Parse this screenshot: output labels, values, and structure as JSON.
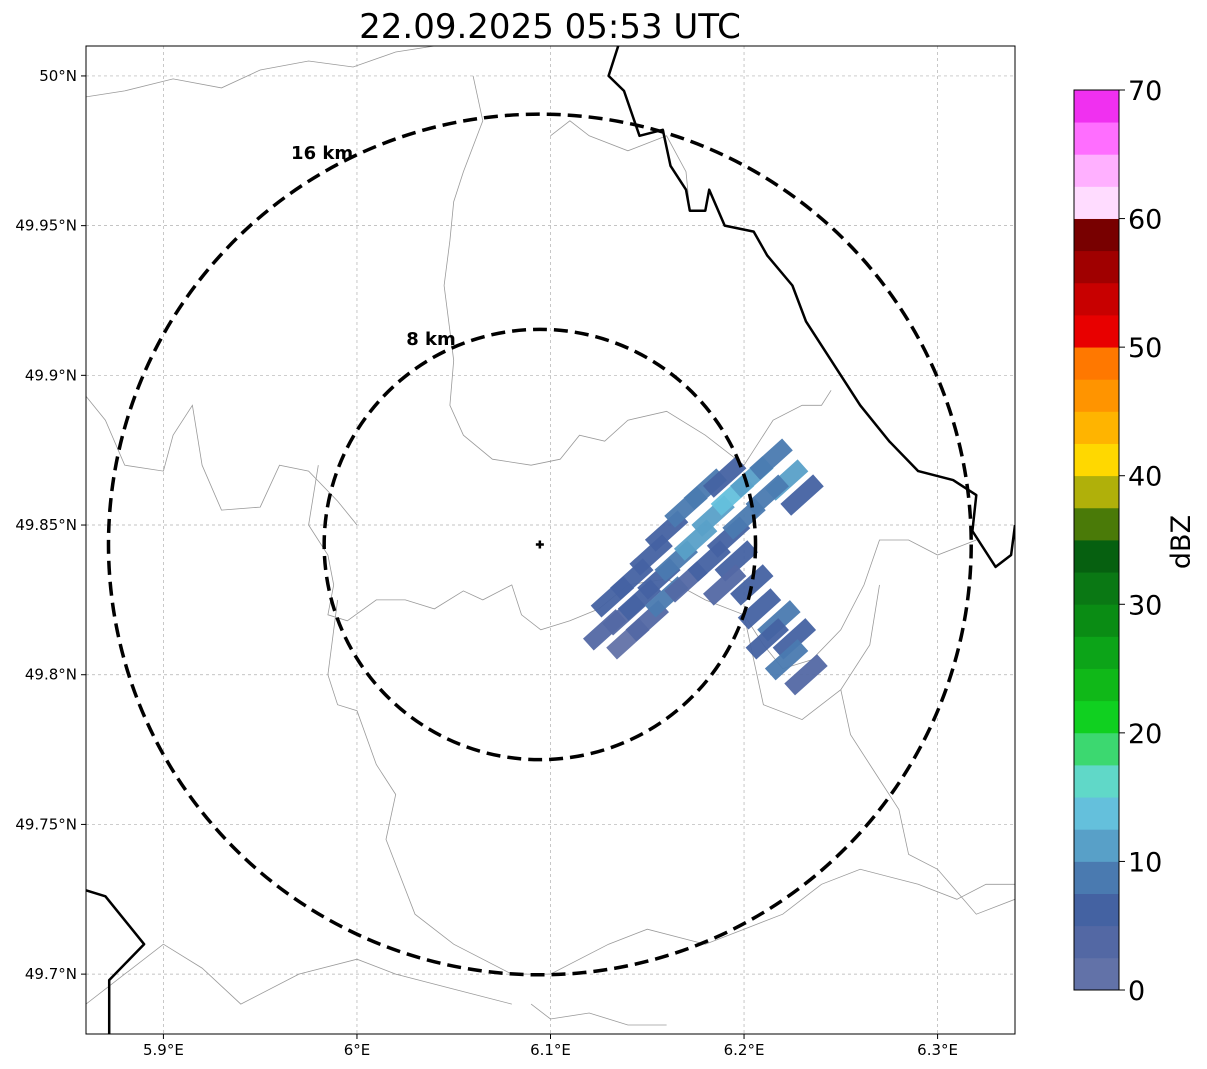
{
  "title": "22.09.2025 05:53 UTC",
  "map": {
    "lon_range": [
      5.86,
      6.34
    ],
    "lat_range": [
      49.68,
      50.01
    ],
    "grid": true,
    "lon_ticks": [
      {
        "value": 5.9,
        "label": "5.9°E"
      },
      {
        "value": 6.0,
        "label": "6°E"
      },
      {
        "value": 6.1,
        "label": "6.1°E"
      },
      {
        "value": 6.2,
        "label": "6.2°E"
      },
      {
        "value": 6.3,
        "label": "6.3°E"
      }
    ],
    "lat_ticks": [
      {
        "value": 50.0,
        "label": "50°N"
      },
      {
        "value": 49.95,
        "label": "49.95°N"
      },
      {
        "value": 49.9,
        "label": "49.9°N"
      },
      {
        "value": 49.85,
        "label": "49.85°N"
      },
      {
        "value": 49.8,
        "label": "49.8°N"
      },
      {
        "value": 49.75,
        "label": "49.75°N"
      },
      {
        "value": 49.7,
        "label": "49.7°N"
      }
    ],
    "center": {
      "lon": 6.0945,
      "lat": 49.8435
    },
    "range_rings": [
      {
        "km": 16,
        "label": "16 km"
      },
      {
        "km": 8,
        "label": "8 km"
      }
    ],
    "country_borders": [
      [
        [
          6.135,
          50.01
        ],
        [
          6.13,
          50.0
        ],
        [
          6.138,
          49.995
        ],
        [
          6.146,
          49.98
        ],
        [
          6.158,
          49.982
        ],
        [
          6.162,
          49.97
        ],
        [
          6.17,
          49.962
        ],
        [
          6.172,
          49.955
        ],
        [
          6.18,
          49.955
        ],
        [
          6.182,
          49.962
        ],
        [
          6.19,
          49.95
        ],
        [
          6.205,
          49.948
        ],
        [
          6.212,
          49.94
        ],
        [
          6.225,
          49.93
        ],
        [
          6.232,
          49.918
        ],
        [
          6.25,
          49.9
        ],
        [
          6.26,
          49.89
        ],
        [
          6.275,
          49.878
        ],
        [
          6.29,
          49.868
        ],
        [
          6.308,
          49.865
        ],
        [
          6.32,
          49.86
        ],
        [
          6.318,
          49.848
        ],
        [
          6.33,
          49.836
        ],
        [
          6.338,
          49.84
        ],
        [
          6.34,
          49.85
        ]
      ],
      [
        [
          5.86,
          49.728
        ],
        [
          5.87,
          49.726
        ],
        [
          5.89,
          49.71
        ],
        [
          5.872,
          49.698
        ],
        [
          5.872,
          49.68
        ]
      ]
    ],
    "admin_lines": [
      [
        [
          5.86,
          49.993
        ],
        [
          5.88,
          49.995
        ],
        [
          5.905,
          49.999
        ],
        [
          5.93,
          49.996
        ],
        [
          5.95,
          50.002
        ],
        [
          5.975,
          50.005
        ],
        [
          5.998,
          50.003
        ],
        [
          6.02,
          50.008
        ],
        [
          6.04,
          50.01
        ]
      ],
      [
        [
          5.86,
          49.893
        ],
        [
          5.87,
          49.885
        ],
        [
          5.88,
          49.87
        ],
        [
          5.9,
          49.868
        ],
        [
          5.905,
          49.88
        ],
        [
          5.915,
          49.89
        ],
        [
          5.92,
          49.87
        ],
        [
          5.93,
          49.855
        ],
        [
          5.95,
          49.856
        ],
        [
          5.96,
          49.87
        ],
        [
          5.975,
          49.868
        ],
        [
          5.99,
          49.858
        ],
        [
          6.0,
          49.85
        ]
      ],
      [
        [
          5.98,
          49.87
        ],
        [
          5.975,
          49.85
        ],
        [
          5.985,
          49.84
        ],
        [
          5.988,
          49.83
        ],
        [
          5.985,
          49.82
        ],
        [
          5.995,
          49.818
        ],
        [
          6.01,
          49.825
        ],
        [
          6.025,
          49.825
        ],
        [
          6.04,
          49.822
        ],
        [
          6.055,
          49.828
        ],
        [
          6.065,
          49.825
        ],
        [
          6.08,
          49.83
        ],
        [
          6.085,
          49.82
        ],
        [
          6.095,
          49.815
        ],
        [
          6.11,
          49.818
        ],
        [
          6.125,
          49.822
        ],
        [
          6.14,
          49.83
        ],
        [
          6.16,
          49.832
        ],
        [
          6.18,
          49.825
        ],
        [
          6.2,
          49.82
        ],
        [
          6.21,
          49.81
        ],
        [
          6.22,
          49.802
        ],
        [
          6.235,
          49.805
        ],
        [
          6.25,
          49.815
        ],
        [
          6.262,
          49.83
        ],
        [
          6.27,
          49.845
        ],
        [
          6.285,
          49.845
        ],
        [
          6.3,
          49.84
        ],
        [
          6.32,
          49.845
        ]
      ],
      [
        [
          6.06,
          50.0
        ],
        [
          6.065,
          49.985
        ],
        [
          6.055,
          49.968
        ],
        [
          6.05,
          49.958
        ],
        [
          6.048,
          49.945
        ],
        [
          6.045,
          49.93
        ],
        [
          6.05,
          49.905
        ],
        [
          6.048,
          49.89
        ],
        [
          6.055,
          49.88
        ],
        [
          6.07,
          49.872
        ],
        [
          6.09,
          49.87
        ],
        [
          6.105,
          49.872
        ],
        [
          6.115,
          49.88
        ],
        [
          6.128,
          49.878
        ],
        [
          6.14,
          49.885
        ],
        [
          6.16,
          49.888
        ],
        [
          6.18,
          49.88
        ],
        [
          6.2,
          49.87
        ],
        [
          6.215,
          49.885
        ],
        [
          6.23,
          49.89
        ],
        [
          6.24,
          49.89
        ],
        [
          6.245,
          49.895
        ]
      ],
      [
        [
          6.1,
          49.98
        ],
        [
          6.11,
          49.985
        ],
        [
          6.12,
          49.98
        ],
        [
          6.14,
          49.975
        ],
        [
          6.16,
          49.98
        ],
        [
          6.17,
          49.968
        ],
        [
          6.172,
          49.955
        ],
        [
          6.18,
          49.955
        ]
      ],
      [
        [
          5.99,
          49.825
        ],
        [
          5.985,
          49.8
        ],
        [
          5.99,
          49.79
        ],
        [
          6.0,
          49.788
        ],
        [
          6.01,
          49.77
        ],
        [
          6.02,
          49.76
        ],
        [
          6.015,
          49.745
        ],
        [
          6.03,
          49.72
        ],
        [
          6.05,
          49.71
        ],
        [
          6.08,
          49.7
        ],
        [
          6.1,
          49.7
        ],
        [
          6.13,
          49.71
        ],
        [
          6.15,
          49.715
        ],
        [
          6.18,
          49.71
        ],
        [
          6.2,
          49.715
        ],
        [
          6.22,
          49.72
        ],
        [
          6.24,
          49.73
        ],
        [
          6.26,
          49.735
        ],
        [
          6.29,
          49.73
        ],
        [
          6.31,
          49.725
        ],
        [
          6.325,
          49.73
        ],
        [
          6.34,
          49.73
        ]
      ],
      [
        [
          5.86,
          49.69
        ],
        [
          5.88,
          49.7
        ],
        [
          5.9,
          49.71
        ],
        [
          5.92,
          49.702
        ],
        [
          5.94,
          49.69
        ],
        [
          5.97,
          49.7
        ],
        [
          6.0,
          49.705
        ],
        [
          6.02,
          49.7
        ],
        [
          6.05,
          49.695
        ],
        [
          6.08,
          49.69
        ]
      ],
      [
        [
          6.2,
          49.82
        ],
        [
          6.21,
          49.79
        ],
        [
          6.23,
          49.785
        ],
        [
          6.25,
          49.795
        ],
        [
          6.265,
          49.81
        ],
        [
          6.27,
          49.83
        ]
      ],
      [
        [
          6.25,
          49.795
        ],
        [
          6.255,
          49.78
        ],
        [
          6.265,
          49.77
        ],
        [
          6.28,
          49.755
        ],
        [
          6.285,
          49.74
        ],
        [
          6.3,
          49.735
        ],
        [
          6.32,
          49.72
        ],
        [
          6.34,
          49.725
        ]
      ],
      [
        [
          6.09,
          49.69
        ],
        [
          6.1,
          49.685
        ],
        [
          6.12,
          49.687
        ],
        [
          6.14,
          49.683
        ],
        [
          6.16,
          49.683
        ]
      ]
    ],
    "echo_cells_dbz": [
      {
        "lon": 6.128,
        "lat": 49.815,
        "dbz": 3
      },
      {
        "lon": 6.138,
        "lat": 49.82,
        "dbz": 4
      },
      {
        "lon": 6.14,
        "lat": 49.812,
        "dbz": 2
      },
      {
        "lon": 6.132,
        "lat": 49.826,
        "dbz": 5
      },
      {
        "lon": 6.146,
        "lat": 49.825,
        "dbz": 6
      },
      {
        "lon": 6.15,
        "lat": 49.818,
        "dbz": 3
      },
      {
        "lon": 6.142,
        "lat": 49.832,
        "dbz": 7
      },
      {
        "lon": 6.156,
        "lat": 49.832,
        "dbz": 5
      },
      {
        "lon": 6.16,
        "lat": 49.826,
        "dbz": 8
      },
      {
        "lon": 6.152,
        "lat": 49.84,
        "dbz": 6
      },
      {
        "lon": 6.165,
        "lat": 49.838,
        "dbz": 9
      },
      {
        "lon": 6.17,
        "lat": 49.831,
        "dbz": 4
      },
      {
        "lon": 6.16,
        "lat": 49.848,
        "dbz": 7
      },
      {
        "lon": 6.175,
        "lat": 49.845,
        "dbz": 10
      },
      {
        "lon": 6.182,
        "lat": 49.838,
        "dbz": 6
      },
      {
        "lon": 6.17,
        "lat": 49.856,
        "dbz": 8
      },
      {
        "lon": 6.184,
        "lat": 49.853,
        "dbz": 12
      },
      {
        "lon": 6.192,
        "lat": 49.846,
        "dbz": 7
      },
      {
        "lon": 6.18,
        "lat": 49.862,
        "dbz": 9
      },
      {
        "lon": 6.194,
        "lat": 49.86,
        "dbz": 13
      },
      {
        "lon": 6.2,
        "lat": 49.852,
        "dbz": 8
      },
      {
        "lon": 6.19,
        "lat": 49.866,
        "dbz": 6
      },
      {
        "lon": 6.204,
        "lat": 49.866,
        "dbz": 11
      },
      {
        "lon": 6.214,
        "lat": 49.872,
        "dbz": 8
      },
      {
        "lon": 6.222,
        "lat": 49.865,
        "dbz": 10
      },
      {
        "lon": 6.23,
        "lat": 49.86,
        "dbz": 5
      },
      {
        "lon": 6.212,
        "lat": 49.86,
        "dbz": 9
      },
      {
        "lon": 6.208,
        "lat": 49.822,
        "dbz": 6
      },
      {
        "lon": 6.218,
        "lat": 49.818,
        "dbz": 9
      },
      {
        "lon": 6.226,
        "lat": 49.812,
        "dbz": 7
      },
      {
        "lon": 6.212,
        "lat": 49.812,
        "dbz": 5
      },
      {
        "lon": 6.222,
        "lat": 49.805,
        "dbz": 8
      },
      {
        "lon": 6.232,
        "lat": 49.8,
        "dbz": 4
      },
      {
        "lon": 6.204,
        "lat": 49.83,
        "dbz": 7
      },
      {
        "lon": 6.196,
        "lat": 49.838,
        "dbz": 5
      },
      {
        "lon": 6.19,
        "lat": 49.83,
        "dbz": 3
      }
    ]
  },
  "colorbar": {
    "label": "dBZ",
    "min": 0,
    "max": 70,
    "tick_labels": [
      "0",
      "10",
      "20",
      "30",
      "40",
      "50",
      "60",
      "70"
    ],
    "colors": [
      "#6272a8",
      "#5368a4",
      "#4462a2",
      "#4a7ab0",
      "#58a0c8",
      "#64c0dc",
      "#60d8c8",
      "#3cd870",
      "#10d020",
      "#10b818",
      "#0ca418",
      "#0a8c14",
      "#0a7814",
      "#066010",
      "#4a7a08",
      "#b0b00a",
      "#ffd800",
      "#ffb400",
      "#ff9400",
      "#ff7800",
      "#e80000",
      "#c80000",
      "#a00000",
      "#780000",
      "#ffdcff",
      "#ffb0ff",
      "#ff6eff",
      "#f030f0"
    ]
  },
  "colors": {
    "ring": "#000000",
    "country_border": "#000000",
    "admin_line": "#9a9a9a",
    "grid": "#b0b0b0"
  }
}
